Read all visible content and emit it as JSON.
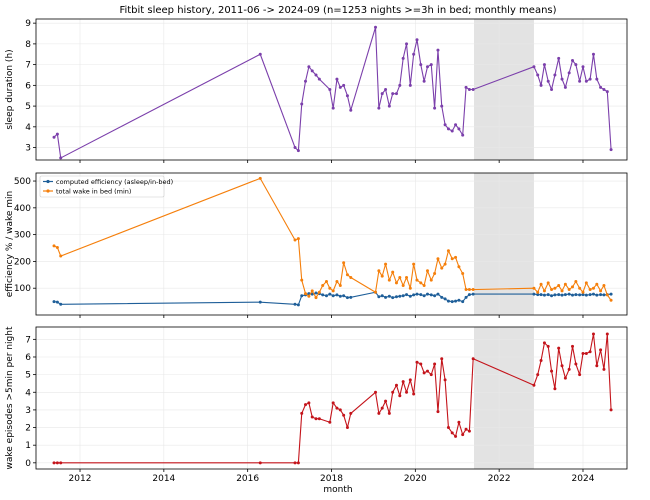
{
  "title": "Fitbit sleep history, 2011-06 -> 2024-09 (n=1253 nights >=3h in bed; monthly means)",
  "xlabel": "month",
  "x_ticks": [
    2012,
    2014,
    2016,
    2018,
    2020,
    2022,
    2024
  ],
  "x_range": [
    2010.95,
    2025.05
  ],
  "shaded_region": [
    2021.4,
    2022.83
  ],
  "colors": {
    "duration": "#7b3fab",
    "efficiency": "#1f5f99",
    "wake": "#f57f0b",
    "episodes": "#c4141b",
    "shade": "#e3e3e3",
    "grid": "#e8e8e8"
  },
  "chart_data": [
    {
      "type": "line",
      "ylabel": "sleep duration (h)",
      "ylim": [
        2.4,
        9.2
      ],
      "y_ticks": [
        3,
        4,
        5,
        6,
        7,
        8,
        9
      ],
      "grid": true,
      "series": [
        {
          "color_key": "duration",
          "x": [
            2011.38,
            2011.46,
            2011.54,
            2016.3,
            2017.13,
            2017.21,
            2017.29,
            2017.38,
            2017.46,
            2017.54,
            2017.63,
            2017.71,
            2017.96,
            2018.04,
            2018.13,
            2018.21,
            2018.29,
            2018.38,
            2018.46,
            2019.05,
            2019.13,
            2019.21,
            2019.29,
            2019.38,
            2019.46,
            2019.55,
            2019.63,
            2019.71,
            2019.79,
            2019.88,
            2019.96,
            2020.04,
            2020.13,
            2020.21,
            2020.29,
            2020.38,
            2020.46,
            2020.54,
            2020.63,
            2020.71,
            2020.79,
            2020.88,
            2020.96,
            2021.04,
            2021.13,
            2021.21,
            2021.29,
            2021.38,
            2022.83,
            2022.92,
            2023.0,
            2023.08,
            2023.17,
            2023.25,
            2023.33,
            2023.42,
            2023.5,
            2023.58,
            2023.67,
            2023.75,
            2023.83,
            2023.92,
            2024.0,
            2024.08,
            2024.17,
            2024.25,
            2024.33,
            2024.42,
            2024.5,
            2024.58,
            2024.67
          ],
          "y": [
            3.5,
            3.65,
            2.5,
            7.5,
            3.0,
            2.85,
            5.1,
            6.2,
            6.9,
            6.7,
            6.5,
            6.3,
            5.8,
            4.9,
            6.3,
            5.9,
            6.0,
            5.5,
            4.8,
            8.8,
            4.9,
            5.6,
            5.8,
            5.0,
            5.6,
            5.6,
            6.0,
            7.3,
            8.0,
            6.0,
            7.5,
            8.2,
            7.0,
            6.2,
            6.9,
            7.0,
            4.9,
            7.7,
            5.0,
            4.1,
            3.9,
            3.8,
            4.1,
            3.9,
            3.6,
            5.9,
            5.8,
            5.8,
            6.9,
            6.5,
            6.0,
            7.0,
            6.2,
            5.8,
            6.5,
            7.3,
            6.3,
            5.9,
            6.6,
            7.2,
            7.0,
            6.2,
            6.9,
            6.2,
            6.3,
            7.5,
            6.3,
            5.9,
            5.8,
            5.7,
            2.9
          ]
        }
      ]
    },
    {
      "type": "line",
      "ylabel": "efficiency % / wake min",
      "ylim": [
        0,
        530
      ],
      "y_ticks": [
        100,
        200,
        300,
        400,
        500
      ],
      "grid": true,
      "legend_position": "top-left",
      "series": [
        {
          "name": "computed efficiency (asleep/in-bed)",
          "color_key": "efficiency",
          "x": [
            2011.38,
            2011.46,
            2011.54,
            2016.3,
            2017.13,
            2017.21,
            2017.29,
            2017.38,
            2017.46,
            2017.54,
            2017.63,
            2017.71,
            2017.79,
            2017.88,
            2017.96,
            2018.04,
            2018.13,
            2018.21,
            2018.29,
            2018.38,
            2018.46,
            2019.05,
            2019.13,
            2019.21,
            2019.29,
            2019.38,
            2019.46,
            2019.55,
            2019.63,
            2019.71,
            2019.79,
            2019.88,
            2019.96,
            2020.04,
            2020.13,
            2020.21,
            2020.29,
            2020.38,
            2020.46,
            2020.54,
            2020.63,
            2020.71,
            2020.79,
            2020.88,
            2020.96,
            2021.04,
            2021.13,
            2021.21,
            2021.29,
            2021.38,
            2022.83,
            2022.92,
            2023.0,
            2023.08,
            2023.17,
            2023.25,
            2023.33,
            2023.42,
            2023.5,
            2023.58,
            2023.67,
            2023.75,
            2023.83,
            2023.92,
            2024.0,
            2024.08,
            2024.17,
            2024.25,
            2024.33,
            2024.42,
            2024.5,
            2024.58,
            2024.67
          ],
          "y": [
            50,
            48,
            40,
            48,
            40,
            38,
            72,
            75,
            80,
            78,
            82,
            80,
            75,
            72,
            78,
            72,
            75,
            70,
            72,
            65,
            66,
            85,
            68,
            72,
            66,
            70,
            65,
            68,
            70,
            72,
            76,
            70,
            75,
            78,
            76,
            72,
            78,
            75,
            72,
            78,
            66,
            60,
            52,
            50,
            52,
            55,
            50,
            66,
            76,
            78,
            78,
            76,
            76,
            74,
            76,
            72,
            75,
            76,
            74,
            76,
            78,
            74,
            76,
            75,
            76,
            74,
            76,
            78,
            74,
            76,
            75,
            76,
            78
          ]
        },
        {
          "name": "total wake in bed (min)",
          "color_key": "wake",
          "x": [
            2011.38,
            2011.46,
            2011.54,
            2016.3,
            2017.13,
            2017.21,
            2017.29,
            2017.38,
            2017.46,
            2017.54,
            2017.63,
            2017.71,
            2017.79,
            2017.88,
            2017.96,
            2018.04,
            2018.13,
            2018.21,
            2018.29,
            2018.38,
            2018.46,
            2019.05,
            2019.13,
            2019.21,
            2019.29,
            2019.38,
            2019.46,
            2019.55,
            2019.63,
            2019.71,
            2019.79,
            2019.88,
            2019.96,
            2020.04,
            2020.13,
            2020.21,
            2020.29,
            2020.38,
            2020.46,
            2020.54,
            2020.63,
            2020.71,
            2020.79,
            2020.88,
            2020.96,
            2021.04,
            2021.13,
            2021.21,
            2021.29,
            2021.38,
            2022.83,
            2022.92,
            2023.0,
            2023.08,
            2023.17,
            2023.25,
            2023.33,
            2023.42,
            2023.5,
            2023.58,
            2023.67,
            2023.75,
            2023.83,
            2023.92,
            2024.0,
            2024.08,
            2024.17,
            2024.25,
            2024.33,
            2024.42,
            2024.5,
            2024.58,
            2024.67
          ],
          "y": [
            258,
            252,
            220,
            510,
            280,
            285,
            130,
            80,
            70,
            90,
            65,
            85,
            110,
            125,
            100,
            90,
            125,
            110,
            195,
            150,
            140,
            85,
            165,
            145,
            190,
            130,
            160,
            120,
            140,
            110,
            140,
            100,
            190,
            130,
            120,
            110,
            165,
            130,
            155,
            210,
            175,
            190,
            240,
            210,
            215,
            180,
            155,
            95,
            95,
            95,
            100,
            85,
            115,
            90,
            120,
            95,
            100,
            110,
            90,
            115,
            95,
            105,
            125,
            100,
            85,
            120,
            95,
            100,
            115,
            90,
            110,
            75,
            55
          ]
        }
      ]
    },
    {
      "type": "line",
      "ylabel": "wake episodes >5min per night",
      "ylim": [
        -0.35,
        7.7
      ],
      "y_ticks": [
        0,
        1,
        2,
        3,
        4,
        5,
        6,
        7
      ],
      "grid": true,
      "series": [
        {
          "color_key": "episodes",
          "x": [
            2011.38,
            2011.46,
            2011.54,
            2016.3,
            2017.13,
            2017.21,
            2017.29,
            2017.38,
            2017.46,
            2017.54,
            2017.63,
            2017.71,
            2017.96,
            2018.04,
            2018.13,
            2018.21,
            2018.29,
            2018.38,
            2018.46,
            2019.05,
            2019.13,
            2019.21,
            2019.29,
            2019.38,
            2019.46,
            2019.55,
            2019.63,
            2019.71,
            2019.79,
            2019.88,
            2019.96,
            2020.04,
            2020.13,
            2020.21,
            2020.29,
            2020.38,
            2020.46,
            2020.54,
            2020.63,
            2020.71,
            2020.79,
            2020.88,
            2020.96,
            2021.04,
            2021.13,
            2021.21,
            2021.29,
            2021.38,
            2022.83,
            2022.92,
            2023.0,
            2023.08,
            2023.17,
            2023.25,
            2023.33,
            2023.42,
            2023.5,
            2023.58,
            2023.67,
            2023.75,
            2023.83,
            2023.92,
            2024.0,
            2024.08,
            2024.17,
            2024.25,
            2024.33,
            2024.42,
            2024.5,
            2024.58,
            2024.67
          ],
          "y": [
            0,
            0,
            0,
            0,
            0,
            0,
            2.8,
            3.3,
            3.4,
            2.6,
            2.5,
            2.5,
            2.3,
            3.4,
            3.1,
            3.0,
            2.7,
            2.0,
            2.8,
            4.0,
            2.8,
            3.1,
            3.5,
            2.8,
            4.0,
            4.4,
            3.8,
            4.6,
            4.0,
            4.7,
            3.9,
            5.7,
            5.6,
            5.1,
            5.2,
            5.0,
            5.6,
            2.9,
            5.9,
            4.7,
            2.0,
            1.7,
            1.5,
            2.3,
            1.6,
            1.9,
            1.8,
            5.9,
            4.4,
            5.0,
            5.8,
            6.8,
            6.6,
            5.2,
            4.2,
            6.5,
            5.5,
            4.8,
            5.3,
            6.6,
            5.6,
            5.0,
            6.2,
            6.2,
            6.3,
            7.3,
            5.5,
            6.4,
            5.3,
            7.3,
            3.0
          ]
        }
      ]
    }
  ]
}
